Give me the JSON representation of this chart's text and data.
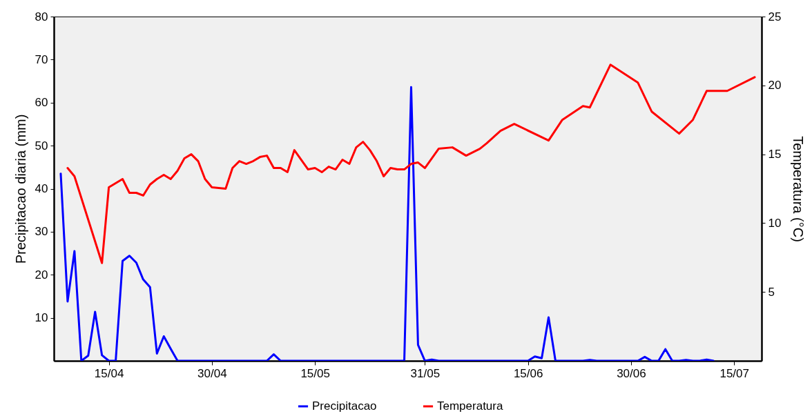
{
  "chart_data": {
    "type": "line",
    "xlabel": null,
    "ylabel": "Precipitacao diaria (mm)",
    "y2label": "Temperatura (°C)",
    "xlim": [
      "--04-07",
      "--07-19"
    ],
    "xticks": [
      {
        "value": "--04-15",
        "label": "15/04"
      },
      {
        "value": "--04-30",
        "label": "30/04"
      },
      {
        "value": "--05-15",
        "label": "15/05"
      },
      {
        "value": "--05-31",
        "label": "31/05"
      },
      {
        "value": "--06-15",
        "label": "15/06"
      },
      {
        "value": "--06-30",
        "label": "30/06"
      },
      {
        "value": "--07-15",
        "label": "15/07"
      }
    ],
    "ylim": [
      0,
      80
    ],
    "yticks": [
      10,
      20,
      30,
      40,
      50,
      60,
      70,
      80
    ],
    "y2lim": [
      0,
      25
    ],
    "y2ticks": [
      5,
      10,
      15,
      20,
      25
    ],
    "grid": false,
    "legend": "bottom",
    "line_style": "solid",
    "series": [
      {
        "name": "Precipitacao",
        "color": "#0000ff",
        "x": [
          "--04-08",
          "--04-09",
          "--04-10",
          "--04-11",
          "--04-12",
          "--04-13",
          "--04-14",
          "--04-15",
          "--04-16",
          "--04-17",
          "--04-18",
          "--04-19",
          "--04-20",
          "--04-21",
          "--04-22",
          "--04-23",
          "--04-24",
          "--04-25",
          "--05-08",
          "--05-09",
          "--05-10",
          "--05-28",
          "--05-29",
          "--05-30",
          "--05-31",
          "--06-01",
          "--06-02",
          "--06-15",
          "--06-16",
          "--06-17",
          "--06-18",
          "--06-19",
          "--06-23",
          "--06-24",
          "--06-25",
          "--07-01",
          "--07-02",
          "--07-03",
          "--07-04",
          "--07-05",
          "--07-06",
          "--07-07",
          "--07-08",
          "--07-09",
          "--07-10",
          "--07-11",
          "--07-12"
        ],
        "values": [
          43.5,
          13.8,
          25.5,
          0,
          1.2,
          11.4,
          1.3,
          0,
          0,
          23.2,
          24.4,
          22.8,
          18.9,
          17.1,
          1.7,
          5.7,
          2.8,
          0,
          0,
          1.5,
          0,
          0,
          63.6,
          3.7,
          0,
          0.3,
          0,
          0,
          1.0,
          0.6,
          10.1,
          0,
          0,
          0.2,
          0,
          0,
          0.9,
          0,
          0,
          2.7,
          0,
          0,
          0.2,
          0,
          0,
          0.3,
          0
        ]
      },
      {
        "name": "Temperatura",
        "color": "#ff0000",
        "axis": "y2",
        "x": [
          "--04-09",
          "--04-10",
          "--04-14",
          "--04-15",
          "--04-16",
          "--04-17",
          "--04-18",
          "--04-19",
          "--04-20",
          "--04-21",
          "--04-22",
          "--04-23",
          "--04-24",
          "--04-25",
          "--04-26",
          "--04-27",
          "--04-28",
          "--04-29",
          "--04-30",
          "--05-02",
          "--05-03",
          "--05-04",
          "--05-05",
          "--05-06",
          "--05-07",
          "--05-08",
          "--05-09",
          "--05-10",
          "--05-11",
          "--05-12",
          "--05-13",
          "--05-14",
          "--05-15",
          "--05-16",
          "--05-17",
          "--05-18",
          "--05-19",
          "--05-20",
          "--05-21",
          "--05-22",
          "--05-23",
          "--05-24",
          "--05-25",
          "--05-26",
          "--05-27",
          "--05-28",
          "--05-29",
          "--05-30",
          "--05-31",
          "--06-02",
          "--06-04",
          "--06-06",
          "--06-08",
          "--06-09",
          "--06-11",
          "--06-13",
          "--06-18",
          "--06-20",
          "--06-23",
          "--06-24",
          "--06-27",
          "--07-01",
          "--07-03",
          "--07-07",
          "--07-09",
          "--07-11",
          "--07-14",
          "--07-18"
        ],
        "values": [
          14.0,
          13.4,
          7.1,
          12.6,
          12.9,
          13.2,
          12.2,
          12.2,
          12.0,
          12.8,
          13.2,
          13.5,
          13.2,
          13.8,
          14.7,
          15.0,
          14.5,
          13.2,
          12.6,
          12.5,
          14.0,
          14.5,
          14.3,
          14.5,
          14.8,
          14.9,
          14.0,
          14.0,
          13.7,
          15.3,
          14.6,
          13.9,
          14.0,
          13.7,
          14.1,
          13.9,
          14.6,
          14.3,
          15.5,
          15.9,
          15.3,
          14.5,
          13.4,
          14.0,
          13.9,
          13.9,
          14.3,
          14.4,
          14.0,
          15.4,
          15.5,
          14.9,
          15.4,
          15.8,
          16.7,
          17.2,
          16.0,
          17.5,
          18.5,
          18.4,
          21.5,
          20.2,
          18.1,
          16.5,
          17.5,
          19.6,
          19.6,
          20.6
        ]
      }
    ]
  }
}
